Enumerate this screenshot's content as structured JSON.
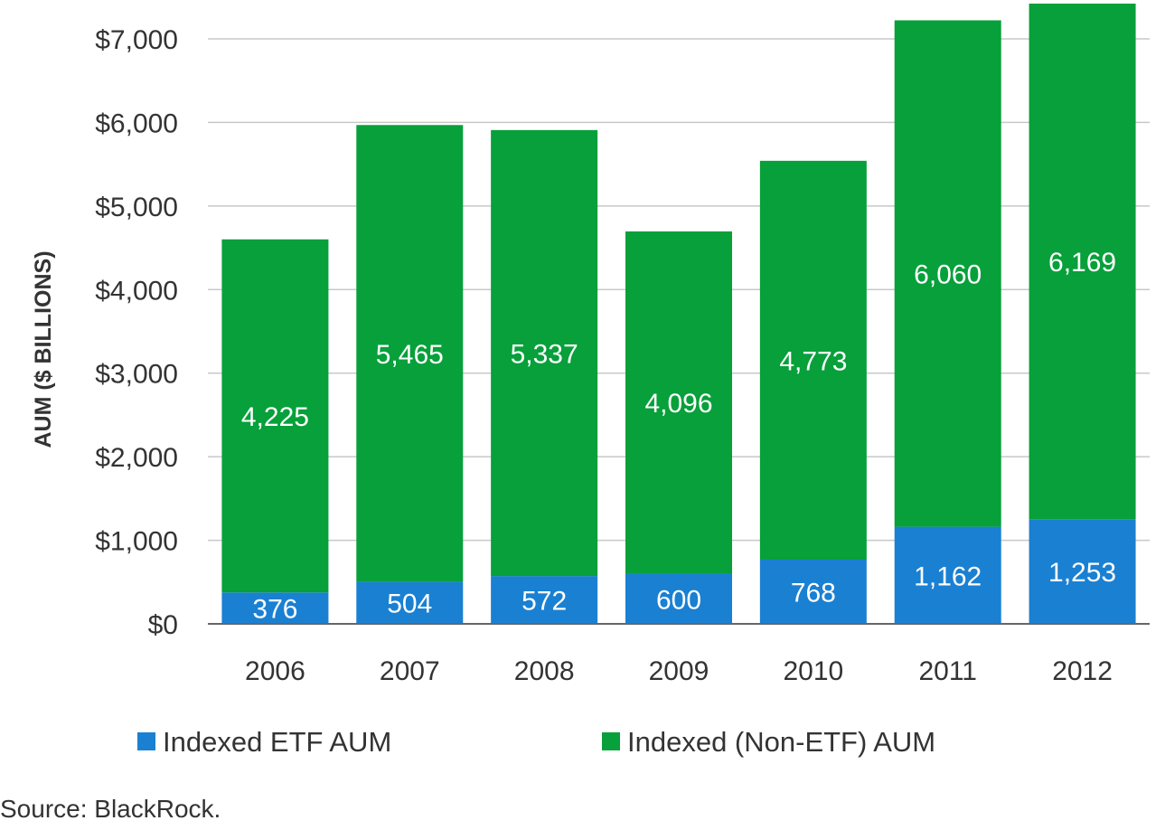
{
  "chart_data": {
    "type": "bar",
    "stacked": true,
    "title": "",
    "xlabel": "",
    "ylabel": "AUM ($ BILLIONS)",
    "ylim": [
      0,
      7000
    ],
    "yticks": [
      0,
      1000,
      2000,
      3000,
      4000,
      5000,
      6000,
      7000
    ],
    "ytick_labels": [
      "$0",
      "$1,000",
      "$2,000",
      "$3,000",
      "$4,000",
      "$5,000",
      "$6,000",
      "$7,000"
    ],
    "grid": true,
    "legend_position": "bottom",
    "categories": [
      "2006",
      "2007",
      "2008",
      "2009",
      "2010",
      "2011",
      "2012"
    ],
    "series": [
      {
        "name": "Indexed ETF AUM",
        "color": "#1a80d2",
        "values": [
          376,
          504,
          572,
          600,
          768,
          1162,
          1253
        ],
        "labels": [
          "376",
          "504",
          "572",
          "600",
          "768",
          "1,162",
          "1,253"
        ]
      },
      {
        "name": "Indexed (Non-ETF) AUM",
        "color": "#07a03a",
        "values": [
          4225,
          5465,
          5337,
          4096,
          4773,
          6060,
          6169
        ],
        "labels": [
          "4,225",
          "5,465",
          "5,337",
          "4,096",
          "4,773",
          "6,060",
          "6,169"
        ]
      }
    ],
    "source": "Source: BlackRock."
  }
}
